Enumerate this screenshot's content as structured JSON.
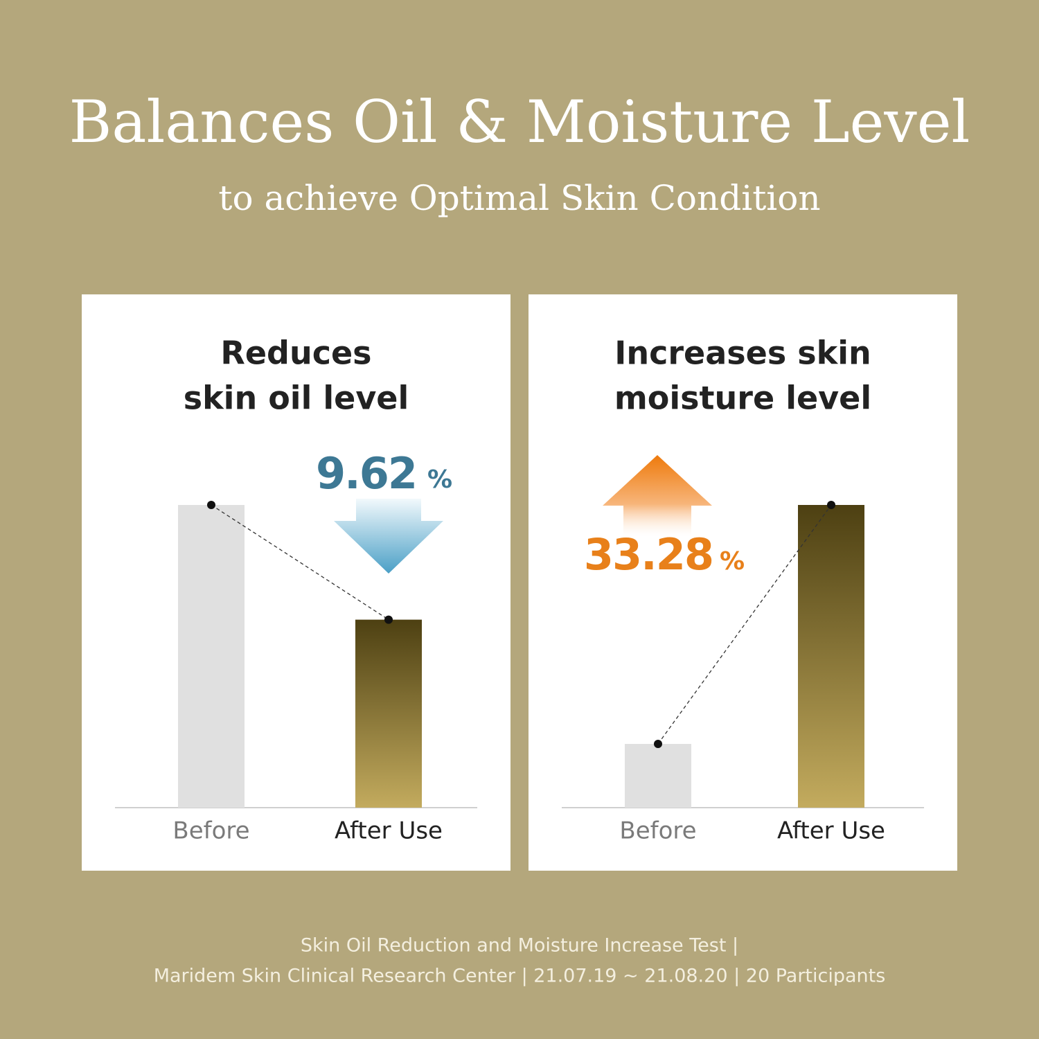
{
  "title": "Balances Oil & Moisture Level",
  "subtitle": "to achieve Optimal Skin Condition",
  "chart_data": [
    {
      "type": "bar",
      "title_lines": [
        "Reduces",
        "skin oil level"
      ],
      "categories": [
        "Before",
        "After Use"
      ],
      "values": [
        95,
        59
      ],
      "ylim": [
        0,
        100
      ],
      "annotation": {
        "value": 9.62,
        "unit": "%"
      }
    },
    {
      "type": "bar",
      "title_lines": [
        "Increases skin",
        "moisture level"
      ],
      "categories": [
        "Before",
        "After Use"
      ],
      "values": [
        20,
        95
      ],
      "ylim": [
        0,
        100
      ],
      "annotation": {
        "value": 33.28,
        "unit": "%"
      }
    }
  ],
  "footer": [
    "Skin Oil Reduction and Moisture Increase Test |",
    "Maridem Skin Clinical Research Center | 21.07.19 ~ 21.08.20 | 20 Participants"
  ]
}
